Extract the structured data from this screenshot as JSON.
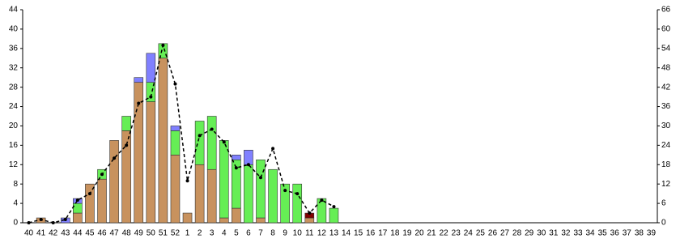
{
  "chart_data": {
    "type": "bar",
    "stacked": true,
    "categories": [
      "40",
      "41",
      "42",
      "43",
      "44",
      "45",
      "46",
      "47",
      "48",
      "49",
      "50",
      "51",
      "52",
      "1",
      "2",
      "3",
      "4",
      "5",
      "6",
      "7",
      "8",
      "9",
      "10",
      "11",
      "12",
      "13",
      "14",
      "15",
      "16",
      "17",
      "18",
      "19",
      "20",
      "21",
      "22",
      "23",
      "24",
      "25",
      "26",
      "27",
      "28",
      "29",
      "30",
      "31",
      "32",
      "33",
      "34",
      "35",
      "36",
      "37",
      "38",
      "39"
    ],
    "series": [
      {
        "color": "#c8925e",
        "values": [
          0,
          1,
          0,
          0,
          2,
          8,
          9,
          17,
          19,
          29,
          25,
          34,
          14,
          2,
          12,
          11,
          1,
          3,
          0,
          1,
          0,
          0,
          0,
          1,
          0,
          0,
          0,
          0,
          0,
          0,
          0,
          0,
          0,
          0,
          0,
          0,
          0,
          0,
          0,
          0,
          0,
          0,
          0,
          0,
          0,
          0,
          0,
          0,
          0,
          0,
          0,
          0
        ]
      },
      {
        "color": "#66ee55",
        "values": [
          0,
          0,
          0,
          0,
          2,
          0,
          2,
          0,
          3,
          0,
          4,
          3,
          5,
          0,
          9,
          11,
          16,
          10,
          12,
          12,
          11,
          8,
          8,
          0,
          5,
          3,
          0,
          0,
          0,
          0,
          0,
          0,
          0,
          0,
          0,
          0,
          0,
          0,
          0,
          0,
          0,
          0,
          0,
          0,
          0,
          0,
          0,
          0,
          0,
          0,
          0,
          0
        ]
      },
      {
        "color": "#8080ff",
        "values": [
          0,
          0,
          0,
          1,
          1,
          0,
          0,
          0,
          0,
          1,
          6,
          0,
          1,
          0,
          0,
          0,
          0,
          1,
          3,
          0,
          0,
          0,
          0,
          0,
          0,
          0,
          0,
          0,
          0,
          0,
          0,
          0,
          0,
          0,
          0,
          0,
          0,
          0,
          0,
          0,
          0,
          0,
          0,
          0,
          0,
          0,
          0,
          0,
          0,
          0,
          0,
          0
        ]
      },
      {
        "color": "#800000",
        "values": [
          0,
          0,
          0,
          0,
          0,
          0,
          0,
          0,
          0,
          0,
          0,
          0,
          0,
          0,
          0,
          0,
          0,
          0,
          0,
          0,
          0,
          0,
          0,
          1,
          0,
          0,
          0,
          0,
          0,
          0,
          0,
          0,
          0,
          0,
          0,
          0,
          0,
          0,
          0,
          0,
          0,
          0,
          0,
          0,
          0,
          0,
          0,
          0,
          0,
          0,
          0,
          0
        ]
      },
      {
        "type": "line",
        "axis": "y2",
        "color": "#000000",
        "dashed": true,
        "values": [
          0,
          1,
          0,
          1,
          7,
          9,
          15,
          20,
          24,
          37,
          39,
          55,
          43,
          13,
          27,
          29,
          25,
          17,
          18,
          14,
          23,
          10,
          9,
          3,
          7,
          5,
          null,
          null,
          null,
          null,
          null,
          null,
          null,
          null,
          null,
          null,
          null,
          null,
          null,
          null,
          null,
          null,
          null,
          null,
          null,
          null,
          null,
          null,
          null,
          null,
          null,
          null
        ]
      }
    ],
    "ylim": [
      0,
      44
    ],
    "yticks": [
      0,
      4,
      8,
      12,
      16,
      20,
      24,
      28,
      32,
      36,
      40,
      44
    ],
    "y2lim": [
      0,
      66
    ],
    "y2ticks": [
      0,
      6,
      12,
      18,
      24,
      30,
      36,
      42,
      48,
      54,
      60,
      66
    ],
    "grid": false
  }
}
